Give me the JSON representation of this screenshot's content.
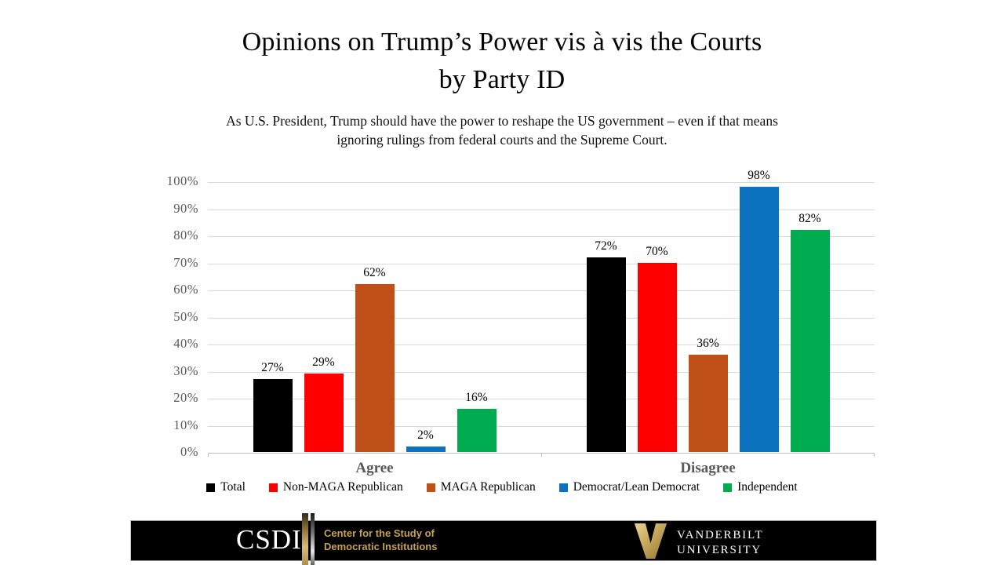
{
  "title": {
    "line1": "Opinions on Trump’s Power vis à vis the Courts",
    "line2": "by Party ID"
  },
  "subtitle": {
    "line1": "As U.S. President, Trump should have the power to reshape the US government – even if that means",
    "line2": "ignoring rulings from federal courts and the Supreme Court."
  },
  "chart_data": {
    "type": "bar",
    "categories": [
      "Agree",
      "Disagree"
    ],
    "series": [
      {
        "name": "Total",
        "color": "#000000",
        "values": [
          27,
          72
        ]
      },
      {
        "name": "Non-MAGA Republican",
        "color": "#ff0000",
        "values": [
          29,
          70
        ]
      },
      {
        "name": "MAGA Republican",
        "color": "#bf5017",
        "values": [
          62,
          36
        ]
      },
      {
        "name": "Democrat/Lean Democrat",
        "color": "#0b72bf",
        "values": [
          2,
          98
        ]
      },
      {
        "name": "Independent",
        "color": "#00ac50",
        "values": [
          16,
          82
        ]
      }
    ],
    "ylim": [
      0,
      100
    ],
    "ytick_step": 10,
    "ytick_suffix": "%",
    "data_label_suffix": "%",
    "grid": true,
    "legend_position": "bottom",
    "axis_label_color": "#595959",
    "gridline_color": "#d9d9d9"
  },
  "footer": {
    "csdi": {
      "acronym": "CSDI",
      "name_line1": "Center for the Study of",
      "name_line2": "Democratic Institutions",
      "gold_color": "#c7a34e"
    },
    "vanderbilt": {
      "line1": "VANDERBILT",
      "line2": "UNIVERSITY"
    }
  }
}
